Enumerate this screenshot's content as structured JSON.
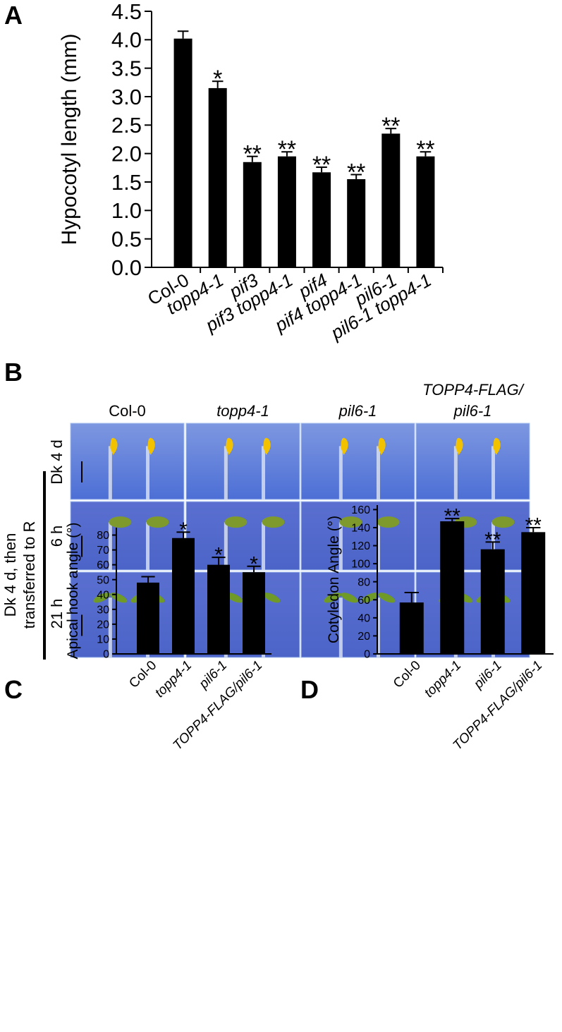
{
  "chart_data": [
    {
      "type": "bar",
      "panel_label": "A",
      "y_label": "Hypocotyl length (mm)",
      "categories": [
        "Col-0",
        "topp4-1",
        "pif3",
        "pif3 topp4-1",
        "pif4",
        "pif4 topp4-1",
        "pil6-1",
        "pil6-1 topp4-1"
      ],
      "values": [
        4.02,
        3.15,
        1.85,
        1.95,
        1.67,
        1.55,
        2.35,
        1.95
      ],
      "errors": [
        0.13,
        0.12,
        0.1,
        0.08,
        0.09,
        0.08,
        0.09,
        0.08
      ],
      "significance": [
        null,
        "*",
        "**",
        "**",
        "**",
        "**",
        "**",
        "**"
      ],
      "color": "#000000",
      "ylim": [
        0,
        4.5
      ],
      "yticks": [
        {
          "value": 0,
          "label": "0.0"
        },
        0.5,
        {
          "value": 1,
          "label": "1.0"
        },
        1.5,
        {
          "value": 2,
          "label": "2.0"
        },
        2.5,
        {
          "value": 3,
          "label": "3.0"
        },
        3.5,
        {
          "value": 4,
          "label": "4.0"
        },
        4.5
      ]
    },
    {
      "type": "bar",
      "panel_label": "C",
      "y_label": "Apical hook angle (°)",
      "categories": [
        "Col-0",
        "topp4-1",
        "pil6-1",
        "TOPP4-FLAG/pil6-1"
      ],
      "values": [
        48,
        78,
        60,
        55
      ],
      "errors": [
        4,
        4,
        5,
        4
      ],
      "significance": [
        null,
        "*",
        "*",
        "*"
      ],
      "color": "#000000",
      "ylim": [
        0,
        85
      ],
      "yticks": [
        0,
        10,
        20,
        30,
        40,
        50,
        60,
        70,
        80
      ]
    },
    {
      "type": "bar",
      "panel_label": "D",
      "y_label": "Cotyledon Angle (°)",
      "categories": [
        "Col-0",
        "topp4-1",
        "pil6-1",
        "TOPP4-FLAG/pil6-1"
      ],
      "values": [
        57,
        147,
        116,
        135
      ],
      "errors": [
        11,
        3,
        8,
        5
      ],
      "significance": [
        null,
        "**",
        "**",
        "**"
      ],
      "color": "#000000",
      "ylim": [
        0,
        165
      ],
      "yticks": [
        0,
        20,
        40,
        60,
        80,
        100,
        120,
        140,
        160
      ]
    }
  ],
  "photo_panel": {
    "panel_label": "B",
    "columns": [
      [
        "Col-0"
      ],
      [
        "topp4-1"
      ],
      [
        "pil6-1"
      ],
      [
        "TOPP4-FLAG/",
        "pil6-1"
      ]
    ],
    "rows": [
      "Dk 4 d",
      "6 h",
      "21 h"
    ],
    "row_group": [
      "Dk 4 d, then",
      "transferred to R"
    ]
  }
}
